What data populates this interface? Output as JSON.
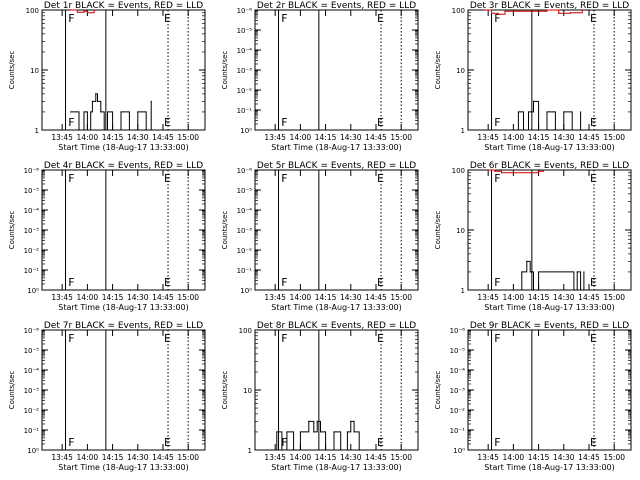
{
  "chart_data": [
    {
      "type": "line",
      "title": "Det 1r BLACK = Events, RED = LLD",
      "ylabel": "Counts/sec",
      "xlabel": "Start Time (18-Aug-17 13:33:00)",
      "yscale": "log",
      "ylim_exp": [
        0,
        2
      ],
      "ytick_labels": [
        "1",
        "10",
        "100"
      ],
      "xtick_labels": [
        "13:45",
        "14:00",
        "14:15",
        "14:30",
        "14:45",
        "15:00"
      ],
      "markers": [
        "F",
        "E"
      ],
      "series": [
        {
          "color": "#000000",
          "x": [
            "13:50",
            "13:55",
            "13:58",
            "14:00",
            "14:02",
            "14:03",
            "14:05",
            "14:06",
            "14:08",
            "14:10",
            "14:12",
            "14:15",
            "14:20",
            "14:25",
            "14:30",
            "14:35",
            "14:38"
          ],
          "values": [
            2,
            1,
            2,
            1,
            2,
            3,
            4,
            3,
            2,
            1,
            2,
            1,
            2,
            1,
            2,
            1,
            3
          ]
        },
        {
          "color": "#cc0000",
          "x": [
            "13:50",
            "13:54",
            "13:58",
            "14:00",
            "14:04"
          ],
          "values": [
            100,
            92,
            95,
            90,
            100
          ]
        }
      ]
    },
    {
      "type": "line",
      "title": "Det 2r BLACK = Events, RED = LLD",
      "ylabel": "Counts/sec",
      "xlabel": "Start Time (18-Aug-17 13:33:00)",
      "yscale": "log",
      "ylim_exp": [
        0,
        6
      ],
      "ytick_labels": [
        "10⁰",
        "10⁻¹",
        "10⁻²",
        "10⁻³",
        "10⁻⁴",
        "10⁻⁵",
        "10⁻⁶"
      ],
      "xtick_labels": [
        "13:45",
        "14:00",
        "14:15",
        "14:30",
        "14:45",
        "15:00"
      ],
      "markers": [
        "F",
        "E"
      ],
      "series": []
    },
    {
      "type": "line",
      "title": "Det 3r BLACK = Events, RED = LLD",
      "ylabel": "Counts/sec",
      "xlabel": "Start Time (18-Aug-17 13:33:00)",
      "yscale": "log",
      "ylim_exp": [
        0,
        2
      ],
      "ytick_labels": [
        "1",
        "10",
        "100"
      ],
      "xtick_labels": [
        "13:45",
        "14:00",
        "14:15",
        "14:30",
        "14:45",
        "15:00"
      ],
      "markers": [
        "F",
        "E"
      ],
      "series": [
        {
          "color": "#000000",
          "x": [
            "14:00",
            "14:03",
            "14:06",
            "14:09",
            "14:12",
            "14:15",
            "14:20",
            "14:25",
            "14:30",
            "14:35",
            "14:40"
          ],
          "values": [
            1,
            2,
            1,
            2,
            3,
            1,
            2,
            1,
            2,
            1,
            2
          ]
        },
        {
          "color": "#cc0000",
          "x": [
            "13:43",
            "13:47",
            "13:51",
            "13:55",
            "14:20",
            "14:27",
            "14:34",
            "14:41"
          ],
          "values": [
            100,
            88,
            85,
            95,
            100,
            88,
            90,
            100
          ]
        }
      ]
    },
    {
      "type": "line",
      "title": "Det 4r BLACK = Events, RED = LLD",
      "ylabel": "Counts/sec",
      "xlabel": "Start Time (18-Aug-17 13:33:00)",
      "yscale": "log",
      "ylim_exp": [
        0,
        6
      ],
      "ytick_labels": [
        "10⁰",
        "10⁻¹",
        "10⁻²",
        "10⁻³",
        "10⁻⁴",
        "10⁻⁵",
        "10⁻⁶"
      ],
      "xtick_labels": [
        "13:45",
        "14:00",
        "14:15",
        "14:30",
        "14:45",
        "15:00"
      ],
      "markers": [
        "F",
        "E"
      ],
      "series": []
    },
    {
      "type": "line",
      "title": "Det 5r BLACK = Events, RED = LLD",
      "ylabel": "Counts/sec",
      "xlabel": "Start Time (18-Aug-17 13:33:00)",
      "yscale": "log",
      "ylim_exp": [
        0,
        6
      ],
      "ytick_labels": [
        "10⁰",
        "10⁻¹",
        "10⁻²",
        "10⁻³",
        "10⁻⁴",
        "10⁻⁵",
        "10⁻⁶"
      ],
      "xtick_labels": [
        "13:45",
        "14:00",
        "14:15",
        "14:30",
        "14:45",
        "15:00"
      ],
      "markers": [
        "F",
        "E"
      ],
      "series": []
    },
    {
      "type": "line",
      "title": "Det 6r BLACK = Events, RED = LLD",
      "ylabel": "Counts/sec",
      "xlabel": "Start Time (18-Aug-17 13:33:00)",
      "yscale": "log",
      "ylim_exp": [
        0,
        2
      ],
      "ytick_labels": [
        "1",
        "10",
        "100"
      ],
      "xtick_labels": [
        "13:45",
        "14:00",
        "14:15",
        "14:30",
        "14:45",
        "15:00"
      ],
      "markers": [
        "F",
        "E"
      ],
      "series": [
        {
          "color": "#000000",
          "x": [
            "14:00",
            "14:05",
            "14:08",
            "14:10",
            "14:12",
            "14:15",
            "14:36",
            "14:38",
            "14:40",
            "14:42"
          ],
          "values": [
            1,
            2,
            3,
            2,
            1,
            2,
            1,
            2,
            1,
            2
          ]
        },
        {
          "color": "#cc0000",
          "x": [
            "13:45",
            "13:49",
            "13:53",
            "14:15",
            "14:18"
          ],
          "values": [
            100,
            95,
            90,
            95,
            100
          ]
        }
      ]
    },
    {
      "type": "line",
      "title": "Det 7r BLACK = Events, RED = LLD",
      "ylabel": "Counts/sec",
      "xlabel": "Start Time (18-Aug-17 13:33:00)",
      "yscale": "log",
      "ylim_exp": [
        0,
        6
      ],
      "ytick_labels": [
        "10⁰",
        "10⁻¹",
        "10⁻²",
        "10⁻³",
        "10⁻⁴",
        "10⁻⁵",
        "10⁻⁶"
      ],
      "xtick_labels": [
        "13:45",
        "14:00",
        "14:15",
        "14:30",
        "14:45",
        "15:00"
      ],
      "markers": [
        "F",
        "E"
      ],
      "series": []
    },
    {
      "type": "line",
      "title": "Det 8r BLACK = Events, RED = LLD",
      "ylabel": "Counts/sec",
      "xlabel": "Start Time (18-Aug-17 13:33:00)",
      "yscale": "log",
      "ylim_exp": [
        0,
        2
      ],
      "ytick_labels": [
        "1",
        "10",
        "100"
      ],
      "xtick_labels": [
        "13:45",
        "14:00",
        "14:15",
        "14:30",
        "14:45",
        "15:00"
      ],
      "markers": [
        "F",
        "E"
      ],
      "series": [
        {
          "color": "#000000",
          "x": [
            "13:43",
            "13:46",
            "13:49",
            "13:52",
            "13:56",
            "14:00",
            "14:05",
            "14:08",
            "14:10",
            "14:12",
            "14:15",
            "14:20",
            "14:24",
            "14:28",
            "14:30",
            "14:32",
            "14:35"
          ],
          "values": [
            1,
            2,
            1,
            2,
            1,
            2,
            3,
            2,
            3,
            2,
            1,
            2,
            1,
            2,
            3,
            2,
            1
          ]
        }
      ]
    },
    {
      "type": "line",
      "title": "Det 9r BLACK = Events, RED = LLD",
      "ylabel": "Counts/sec",
      "xlabel": "Start Time (18-Aug-17 13:33:00)",
      "yscale": "log",
      "ylim_exp": [
        0,
        6
      ],
      "ytick_labels": [
        "10⁰",
        "10⁻¹",
        "10⁻²",
        "10⁻³",
        "10⁻⁴",
        "10⁻⁵",
        "10⁻⁶"
      ],
      "xtick_labels": [
        "13:45",
        "14:00",
        "14:15",
        "14:30",
        "14:45",
        "15:00"
      ],
      "markers": [
        "F",
        "E"
      ],
      "series": []
    }
  ]
}
